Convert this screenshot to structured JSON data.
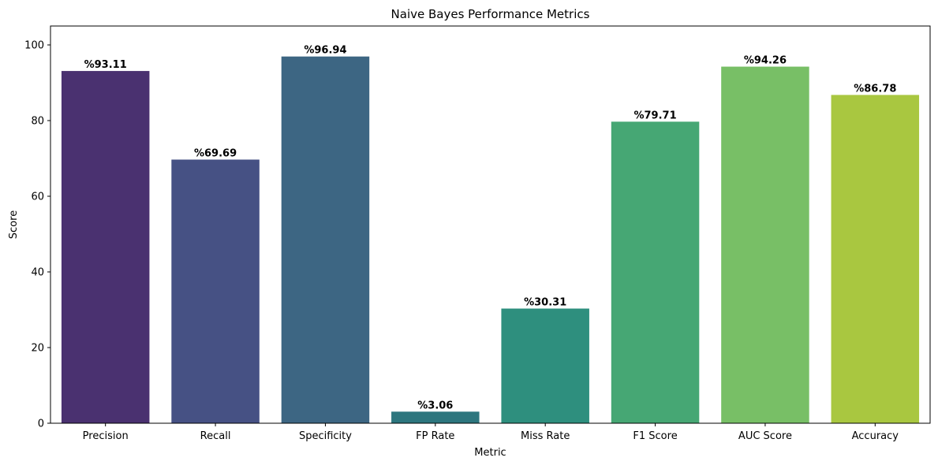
{
  "chart_data": {
    "type": "bar",
    "title": "Naive Bayes Performance Metrics",
    "xlabel": "Metric",
    "ylabel": "Score",
    "ylim": [
      0,
      105
    ],
    "yticks": [
      0,
      20,
      40,
      60,
      80,
      100
    ],
    "grid": false,
    "categories": [
      "Precision",
      "Recall",
      "Specificity",
      "FP Rate",
      "Miss Rate",
      "F1 Score",
      "AUC Score",
      "Accuracy"
    ],
    "values": [
      93.11,
      69.69,
      96.94,
      3.06,
      30.31,
      79.71,
      94.26,
      86.78
    ],
    "data_labels": [
      "%93.11",
      "%69.69",
      "%96.94",
      "%3.06",
      "%30.31",
      "%79.71",
      "%94.26",
      "%86.78"
    ],
    "colors": [
      "#4a3170",
      "#465184",
      "#3d6683",
      "#2d767e",
      "#2e8f7e",
      "#46a774",
      "#78bf66",
      "#a9c740"
    ]
  }
}
